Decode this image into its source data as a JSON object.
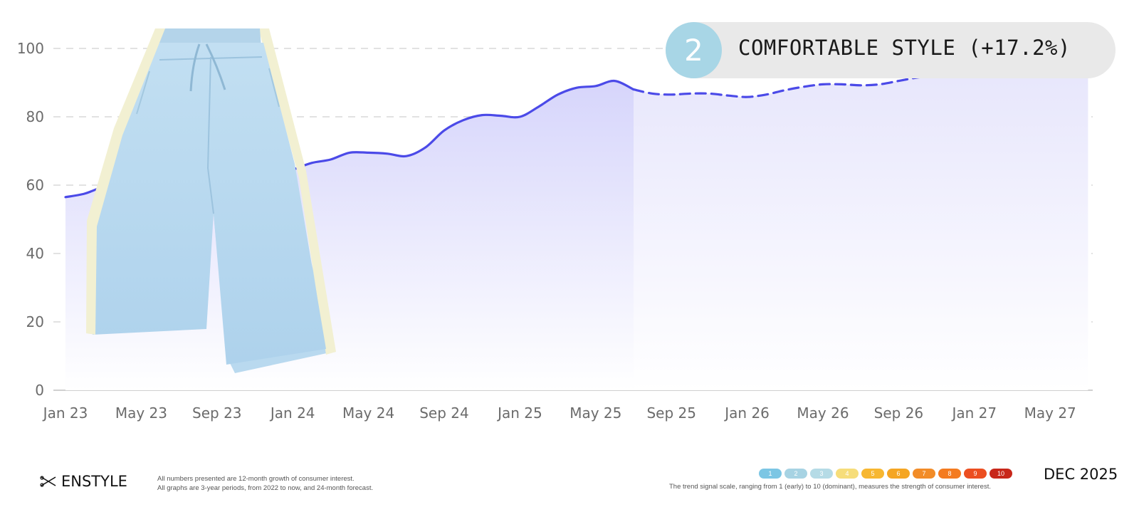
{
  "badge": {
    "rank": "2",
    "label": "COMFORTABLE STYLE (+17.2%)",
    "color": "#a8d6e6"
  },
  "footer": {
    "brand": "ENSTYLE",
    "note_line1": "All numbers presented are 12-month growth of consumer interest.",
    "note_line2": "All graphs are 3-year periods, from 2022 to now, and 24-month forecast.",
    "scale_note": "The trend signal scale, ranging from 1 (early) to 10 (dominant), measures the strength of consumer interest.",
    "date": "DEC 2025",
    "scale": [
      {
        "label": "1",
        "color": "#7cc6e4"
      },
      {
        "label": "2",
        "color": "#a7d3e3"
      },
      {
        "label": "3",
        "color": "#b5dbe6"
      },
      {
        "label": "4",
        "color": "#f6dd7a"
      },
      {
        "label": "5",
        "color": "#f7b731"
      },
      {
        "label": "6",
        "color": "#f5a623"
      },
      {
        "label": "7",
        "color": "#f28c28"
      },
      {
        "label": "8",
        "color": "#f47b20"
      },
      {
        "label": "9",
        "color": "#ec4e20"
      },
      {
        "label": "10",
        "color": "#c8271a"
      }
    ]
  },
  "chart_data": {
    "type": "area",
    "title": "",
    "xlabel": "",
    "ylabel": "",
    "ylim": [
      0,
      100
    ],
    "yticks": [
      0,
      20,
      40,
      60,
      80,
      100
    ],
    "xticks": [
      "Jan 23",
      "May 23",
      "Sep 23",
      "Jan 24",
      "May 24",
      "Sep 24",
      "Jan 25",
      "May 25",
      "Sep 25",
      "Jan 26",
      "May 26",
      "Sep 26",
      "Jan 27",
      "May 27"
    ],
    "grid": "horizontal dashed",
    "line_color": "#4b4ae8",
    "series": [
      {
        "style": "solid",
        "x": [
          "Jan 23",
          "Feb 23",
          "Mar 23",
          "Apr 23",
          "May 23",
          "Jun 23",
          "Jul 23",
          "Aug 23",
          "Sep 23",
          "Oct 23",
          "Nov 23",
          "Dec 23",
          "Jan 24",
          "Feb 24",
          "Mar 24",
          "Apr 24",
          "May 24",
          "Jun 24",
          "Jul 24",
          "Aug 24",
          "Sep 24",
          "Oct 24",
          "Nov 24",
          "Dec 24",
          "Jan 25",
          "Feb 25",
          "Mar 25",
          "Apr 25",
          "May 25",
          "Jun 25",
          "Jul 25"
        ],
        "values": [
          56.5,
          57.5,
          59.5,
          60.5,
          61,
          61.5,
          62,
          62.5,
          62.5,
          62.5,
          62.5,
          62.5,
          64.5,
          66.5,
          67.5,
          69.5,
          69.5,
          69.2,
          68.5,
          71,
          76,
          79,
          80.5,
          80.3,
          80,
          83,
          86.5,
          88.5,
          89,
          90.5,
          88
        ]
      },
      {
        "style": "dashed",
        "x": [
          "Jul 25",
          "Aug 25",
          "Sep 25",
          "Oct 25",
          "Nov 25",
          "Dec 25",
          "Jan 26",
          "Feb 26",
          "Mar 26",
          "Apr 26",
          "May 26",
          "Jun 26",
          "Jul 26",
          "Aug 26",
          "Sep 26",
          "Oct 26",
          "Nov 26",
          "Dec 26",
          "Jan 27",
          "Feb 27",
          "Mar 27",
          "Apr 27",
          "May 27",
          "Jun 27",
          "Jul 27"
        ],
        "values": [
          88,
          86.8,
          86.5,
          86.8,
          86.8,
          86.2,
          85.8,
          86.5,
          87.8,
          88.8,
          89.5,
          89.5,
          89.2,
          89.5,
          90.5,
          91.5,
          92,
          92,
          92.3,
          93,
          93.5,
          94,
          94.5,
          94.5,
          94.5
        ]
      }
    ]
  }
}
